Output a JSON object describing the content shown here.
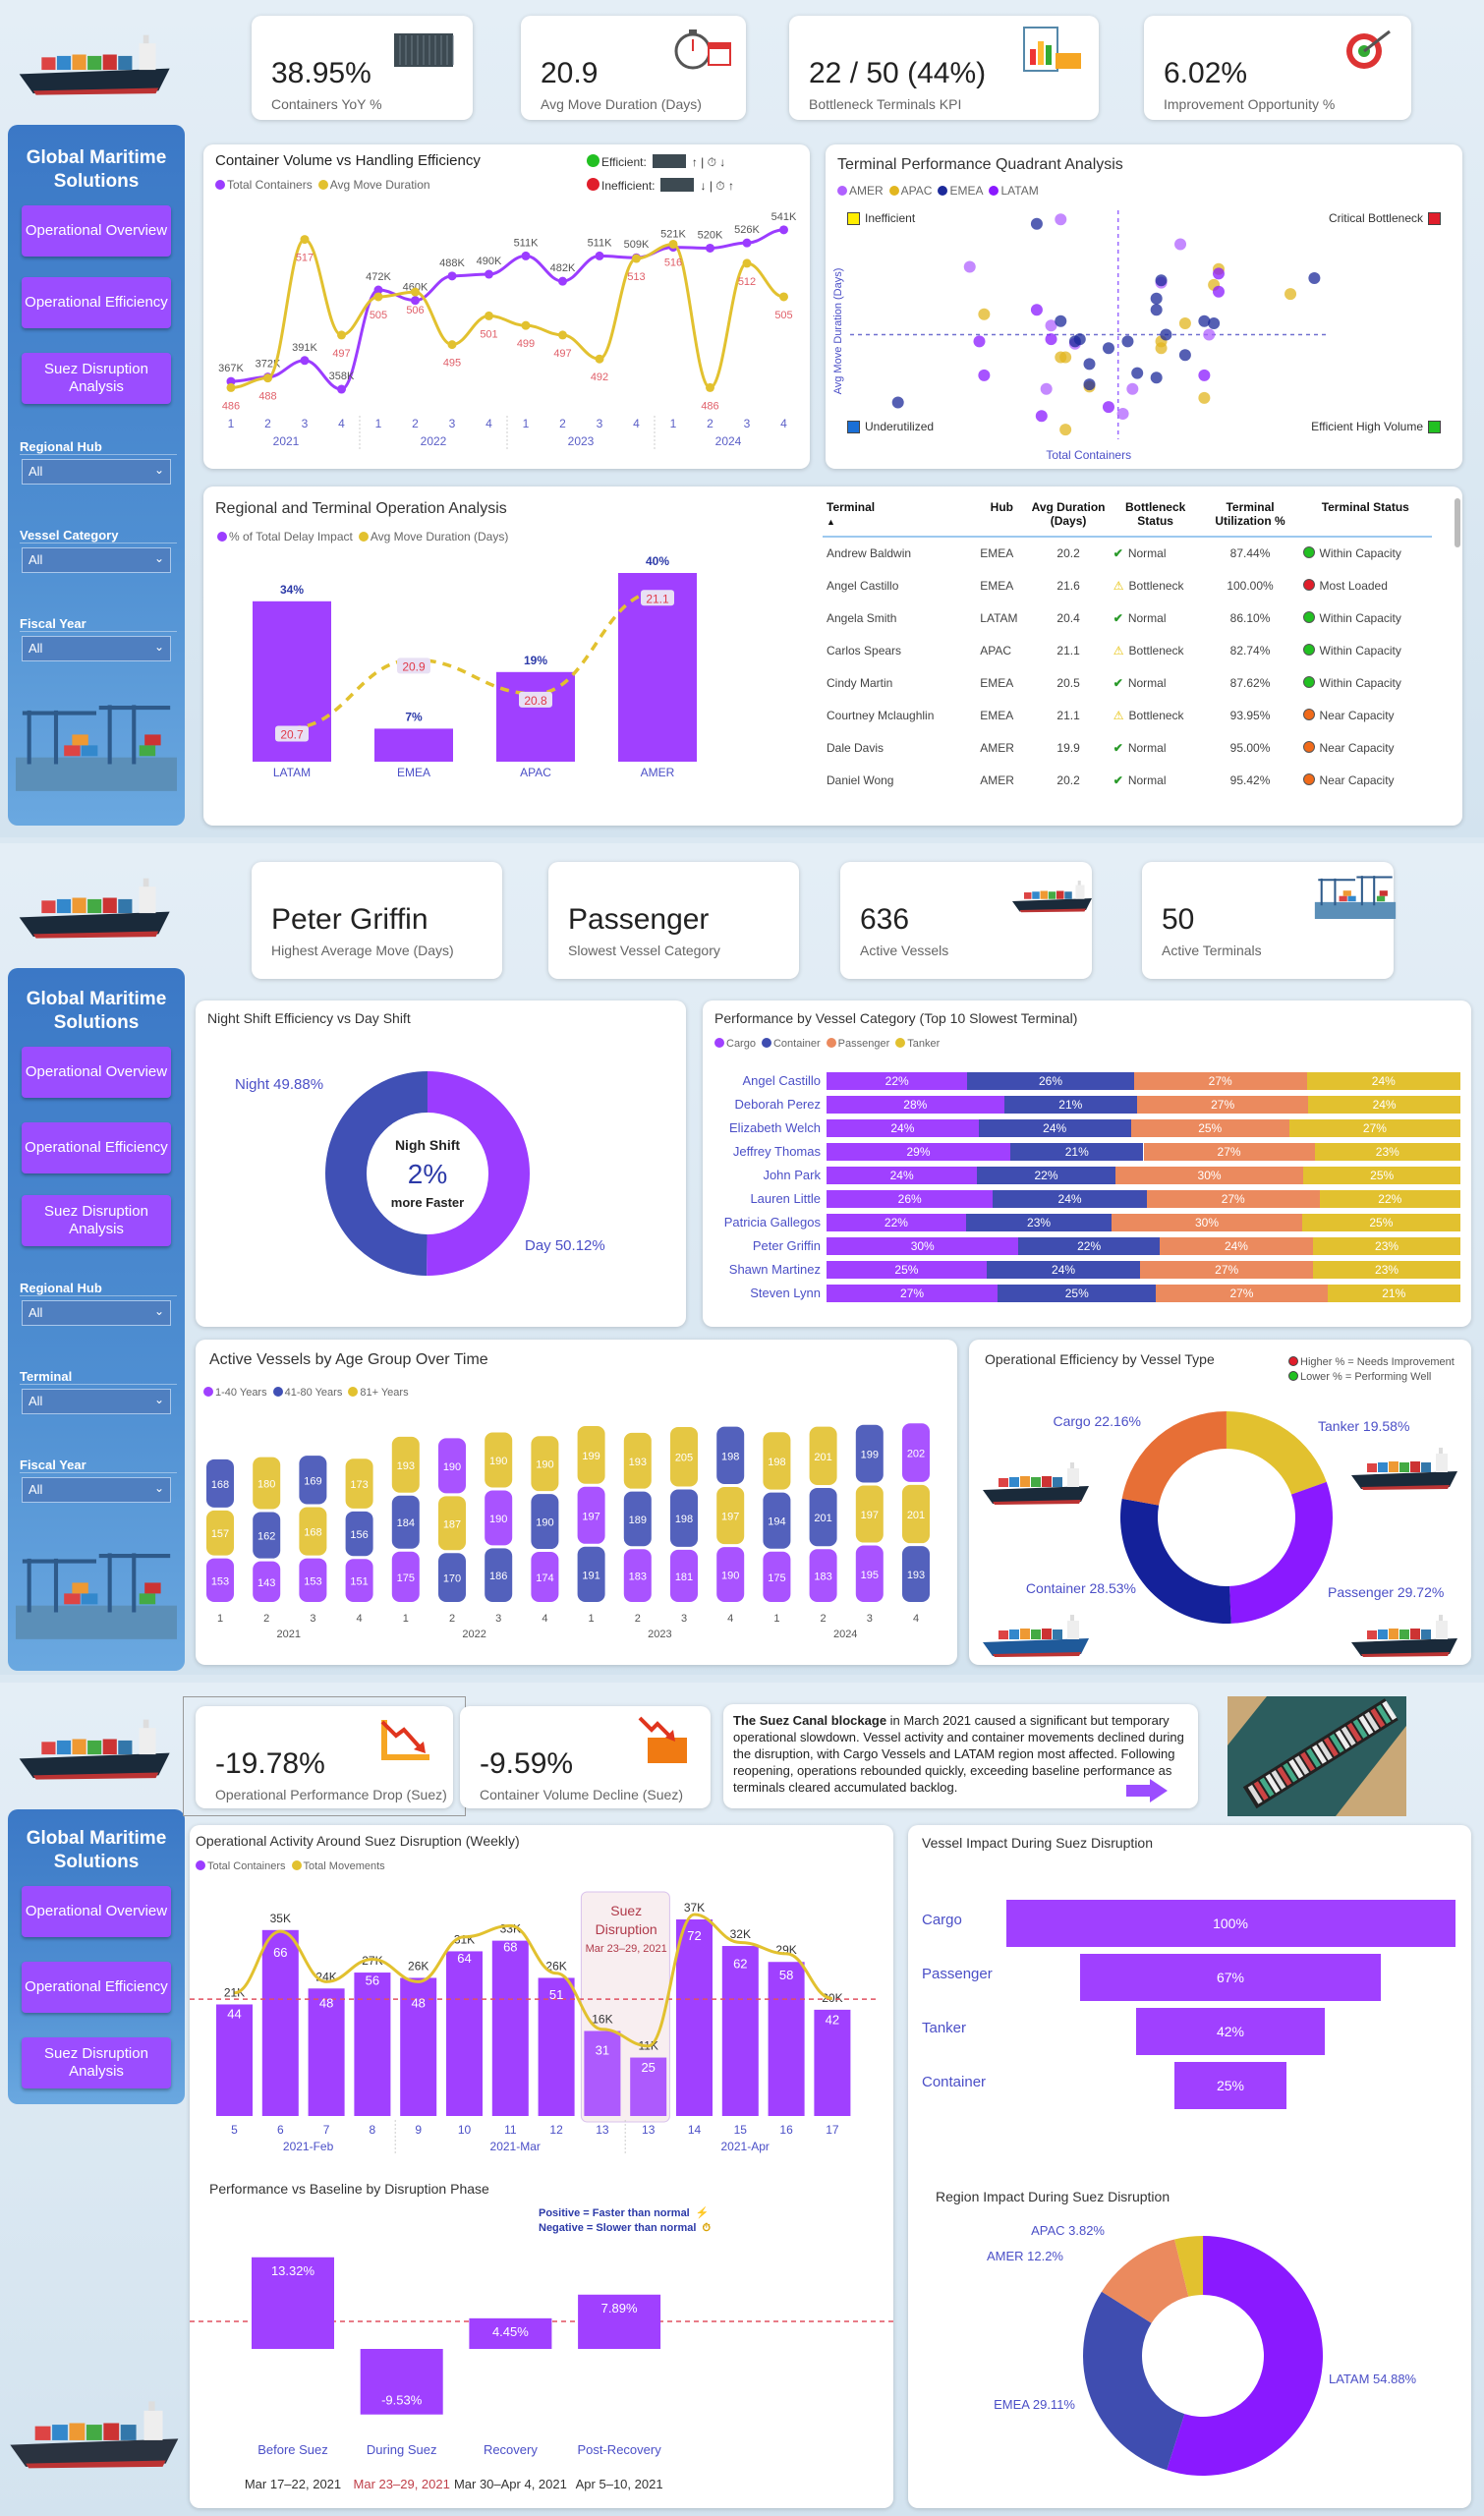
{
  "brand": {
    "title": "Global Maritime Solutions"
  },
  "nav": [
    "Operational Overview",
    "Operational Efficiency",
    "Suez Disruption Analysis"
  ],
  "colors": {
    "purple": "#9b3cff",
    "blue": "#3f4db0",
    "gold": "#e2c12f",
    "orange": "#e98a5d",
    "navy": "#14219a",
    "violet": "#8a19ff",
    "green": "#22c022",
    "red": "#e01e2b"
  },
  "page1": {
    "filters": [
      {
        "label": "Regional Hub",
        "value": "All"
      },
      {
        "label": "Vessel Category",
        "value": "All"
      },
      {
        "label": "Fiscal Year",
        "value": "All"
      }
    ],
    "kpis": [
      {
        "value": "38.95%",
        "label": "Containers YoY %",
        "icon": "container-icon"
      },
      {
        "value": "20.9",
        "label": "Avg Move Duration (Days)",
        "icon": "stopwatch-icon"
      },
      {
        "value": "22 / 50 (44%)",
        "label": "Bottleneck Terminals KPI",
        "icon": "clipboard-chart-icon"
      },
      {
        "value": "6.02%",
        "label": "Improvement Opportunity %",
        "icon": "target-icon"
      }
    ],
    "line_chart": {
      "title": "Container Volume vs Handling Efficiency",
      "legend": [
        "Total Containers",
        "Avg Move Duration"
      ],
      "status_legend": {
        "efficient": "Efficient:",
        "inefficient": "Inefficient:",
        "efficient_rule": "↑ | ⏱ ↓",
        "inefficient_rule": "↓ | ⏱ ↑"
      }
    },
    "quadrant": {
      "title": "Terminal Performance Quadrant Analysis",
      "legend": [
        "AMER",
        "APAC",
        "EMEA",
        "LATAM"
      ],
      "quadrants": {
        "tl": "Inefficient",
        "tr": "Critical Bottleneck",
        "bl": "Underutilized",
        "br": "Efficient High Volume"
      },
      "xlabel": "Total Containers",
      "ylabel": "Avg Move Duration (Days)"
    },
    "regional": {
      "title": "Regional and Terminal Operation Analysis",
      "legend": [
        "% of Total Delay Impact",
        "Avg Move Duration (Days)"
      ]
    },
    "table": {
      "headers": [
        "Terminal",
        "Hub",
        "Avg Duration (Days)",
        "Bottleneck Status",
        "Terminal Utilization %",
        "Terminal Status"
      ],
      "sort_indicator": "▲",
      "rows": [
        {
          "terminal": "Andrew Baldwin",
          "hub": "EMEA",
          "avg": "20.2",
          "bottleneck": "Normal",
          "util": "87.44%",
          "status": "Within Capacity",
          "status_color": "#22c022"
        },
        {
          "terminal": "Angel Castillo",
          "hub": "EMEA",
          "avg": "21.6",
          "bottleneck": "Bottleneck",
          "util": "100.00%",
          "status": "Most Loaded",
          "status_color": "#e01e2b"
        },
        {
          "terminal": "Angela Smith",
          "hub": "LATAM",
          "avg": "20.4",
          "bottleneck": "Normal",
          "util": "86.10%",
          "status": "Within Capacity",
          "status_color": "#22c022"
        },
        {
          "terminal": "Carlos Spears",
          "hub": "APAC",
          "avg": "21.1",
          "bottleneck": "Bottleneck",
          "util": "82.74%",
          "status": "Within Capacity",
          "status_color": "#22c022"
        },
        {
          "terminal": "Cindy Martin",
          "hub": "EMEA",
          "avg": "20.5",
          "bottleneck": "Normal",
          "util": "87.62%",
          "status": "Within Capacity",
          "status_color": "#22c022"
        },
        {
          "terminal": "Courtney Mclaughlin",
          "hub": "EMEA",
          "avg": "21.1",
          "bottleneck": "Bottleneck",
          "util": "93.95%",
          "status": "Near Capacity",
          "status_color": "#f06a1a"
        },
        {
          "terminal": "Dale Davis",
          "hub": "AMER",
          "avg": "19.9",
          "bottleneck": "Normal",
          "util": "95.00%",
          "status": "Near Capacity",
          "status_color": "#f06a1a"
        },
        {
          "terminal": "Daniel Wong",
          "hub": "AMER",
          "avg": "20.2",
          "bottleneck": "Normal",
          "util": "95.42%",
          "status": "Near Capacity",
          "status_color": "#f06a1a"
        }
      ]
    }
  },
  "page2": {
    "filters": [
      {
        "label": "Regional Hub",
        "value": "All"
      },
      {
        "label": "Terminal",
        "value": "All"
      },
      {
        "label": "Fiscal Year",
        "value": "All"
      }
    ],
    "kpis": [
      {
        "value": "Peter Griffin",
        "label": "Highest Average Move (Days)"
      },
      {
        "value": "Passenger",
        "label": "Slowest Vessel Category"
      },
      {
        "value": "636",
        "label": "Active Vessels",
        "icon": "cargo-ship-icon"
      },
      {
        "value": "50",
        "label": "Active Terminals",
        "icon": "port-crane-icon"
      }
    ],
    "shift": {
      "title": "Night Shift Efficiency vs Day Shift",
      "night_label": "Night 49.88%",
      "day_label": "Day 50.12%",
      "center_line1": "Nigh Shift",
      "center_value": "2%",
      "center_line2": "more Faster"
    },
    "vessel_category": {
      "title": "Performance by Vessel Category (Top 10 Slowest Terminal)"
    },
    "age": {
      "title": "Active Vessels by Age Group Over Time"
    },
    "efficiency": {
      "title": "Operational Efficiency by Vessel Type",
      "legend_high": "Higher % = Needs Improvement",
      "legend_low": "Lower %  = Performing Well"
    }
  },
  "page3": {
    "kpis": [
      {
        "value": "-19.78%",
        "label": "Operational Performance Drop (Suez)",
        "icon": "trend-down-icon"
      },
      {
        "value": "-9.59%",
        "label": "Container Volume Decline (Suez)",
        "icon": "container-decline-icon"
      }
    ],
    "story": {
      "bold": "The Suez Canal blockage",
      "text": " in March 2021 caused a significant but temporary operational slowdown. Vessel activity and container movements declined during the disruption, with Cargo Vessels and LATAM region most affected. Following reopening, operations rebounded quickly, exceeding baseline performance as terminals cleared accumulated backlog."
    },
    "weekly": {
      "title": "Operational Activity Around Suez Disruption (Weekly)",
      "legend": [
        "Total Containers",
        "Total Movements"
      ],
      "highlight_title": "Suez Disruption",
      "highlight_dates": "Mar 23–29, 2021"
    },
    "baseline": {
      "title": "Performance vs Baseline by Disruption Phase",
      "legend_pos": "Positive   = Faster than normal",
      "legend_neg": "Negative = Slower than normal"
    },
    "vessel_impact": {
      "title": "Vessel Impact During Suez Disruption"
    },
    "region_impact": {
      "title": "Region Impact During Suez Disruption"
    }
  },
  "chart_data": [
    {
      "id": "container_volume",
      "type": "line",
      "x": [
        "1",
        "2",
        "3",
        "4",
        "1",
        "2",
        "3",
        "4",
        "1",
        "2",
        "3",
        "4",
        "1",
        "2",
        "3",
        "4"
      ],
      "x_groups": [
        "2021",
        "2022",
        "2023",
        "2024"
      ],
      "series": [
        {
          "name": "Total Containers",
          "unit": "K",
          "values": [
            367,
            372,
            391,
            358,
            472,
            460,
            488,
            490,
            511,
            482,
            511,
            509,
            521,
            520,
            526,
            541
          ]
        },
        {
          "name": "Avg Move Duration",
          "values": [
            486,
            488,
            517,
            497,
            505,
            506,
            495,
            501,
            499,
            497,
            492,
            513,
            516,
            486,
            512,
            505
          ]
        }
      ]
    },
    {
      "id": "quadrant",
      "type": "scatter",
      "xlabel": "Total Containers",
      "ylabel": "Avg Move Duration (Days)",
      "x_median": 56,
      "y_median": 45,
      "series": [
        {
          "name": "AMER",
          "points": [
            [
              44,
              96
            ],
            [
              25,
              75
            ],
            [
              42,
              49
            ],
            [
              47,
              41
            ],
            [
              41,
              21
            ],
            [
              59,
              21
            ],
            [
              57,
              10
            ],
            [
              69,
              85
            ],
            [
              75,
              45
            ],
            [
              65,
              68
            ]
          ]
        },
        {
          "name": "APAC",
          "points": [
            [
              28,
              54
            ],
            [
              44,
              35
            ],
            [
              45,
              35
            ],
            [
              50,
              22
            ],
            [
              45,
              3
            ],
            [
              65,
              42
            ],
            [
              65,
              39
            ],
            [
              70,
              50
            ],
            [
              74,
              17
            ],
            [
              76,
              67
            ],
            [
              77,
              74
            ],
            [
              92,
              63
            ]
          ]
        },
        {
          "name": "EMEA",
          "points": [
            [
              39,
              94
            ],
            [
              10,
              15
            ],
            [
              44,
              51
            ],
            [
              47,
              42
            ],
            [
              48,
              43
            ],
            [
              50,
              32
            ],
            [
              54,
              39
            ],
            [
              50,
              23
            ],
            [
              58,
              42
            ],
            [
              60,
              28
            ],
            [
              64,
              26
            ],
            [
              65,
              69
            ],
            [
              64,
              61
            ],
            [
              64,
              56
            ],
            [
              66,
              45
            ],
            [
              70,
              36
            ],
            [
              74,
              51
            ],
            [
              76,
              50
            ],
            [
              97,
              70
            ]
          ]
        },
        {
          "name": "LATAM",
          "points": [
            [
              27,
              42
            ],
            [
              28,
              27
            ],
            [
              39,
              56
            ],
            [
              42,
              43
            ],
            [
              40,
              9
            ],
            [
              54,
              13
            ],
            [
              74,
              27
            ],
            [
              77,
              72
            ],
            [
              77,
              64
            ]
          ]
        }
      ]
    },
    {
      "id": "regional",
      "type": "bar",
      "categories": [
        "LATAM",
        "EMEA",
        "APAC",
        "AMER"
      ],
      "series": [
        {
          "name": "% of Total Delay Impact",
          "values": [
            34,
            7,
            19,
            40
          ],
          "labels": [
            "34%",
            "7%",
            "19%",
            "40%"
          ]
        },
        {
          "name": "Avg Move Duration (Days)",
          "values": [
            20.7,
            20.9,
            20.8,
            21.1
          ],
          "labels": [
            "20.7",
            "20.9",
            "20.8",
            "21.1"
          ]
        }
      ]
    },
    {
      "id": "shift",
      "type": "pie",
      "categories": [
        "Night",
        "Day"
      ],
      "values": [
        49.88,
        50.12
      ]
    },
    {
      "id": "vessel_category",
      "type": "bar",
      "stacked": true,
      "categories": [
        "Angel Castillo",
        "Deborah Perez",
        "Elizabeth Welch",
        "Jeffrey Thomas",
        "John Park",
        "Lauren Little",
        "Patricia Gallegos",
        "Peter Griffin",
        "Shawn Martinez",
        "Steven Lynn"
      ],
      "series": [
        {
          "name": "Cargo",
          "values": [
            22,
            28,
            24,
            29,
            24,
            26,
            22,
            30,
            25,
            27
          ]
        },
        {
          "name": "Container",
          "values": [
            26,
            21,
            24,
            21,
            22,
            24,
            23,
            22,
            24,
            25
          ]
        },
        {
          "name": "Passenger",
          "values": [
            27,
            27,
            25,
            27,
            30,
            27,
            30,
            24,
            27,
            27
          ]
        },
        {
          "name": "Tanker",
          "values": [
            24,
            24,
            27,
            23,
            25,
            22,
            25,
            23,
            23,
            21
          ]
        }
      ]
    },
    {
      "id": "age_group",
      "type": "bar",
      "stacked": true,
      "x": [
        "1",
        "2",
        "3",
        "4",
        "1",
        "2",
        "3",
        "4",
        "1",
        "2",
        "3",
        "4",
        "1",
        "2",
        "3",
        "4"
      ],
      "x_groups": [
        "2021",
        "2022",
        "2023",
        "2024"
      ],
      "series": [
        {
          "name": "1-40 Years",
          "values": [
            153,
            143,
            153,
            151,
            175,
            190,
            190,
            174,
            197,
            183,
            181,
            190,
            175,
            183,
            195,
            202
          ]
        },
        {
          "name": "41-80 Years",
          "values": [
            168,
            162,
            169,
            156,
            184,
            170,
            186,
            190,
            191,
            189,
            198,
            198,
            194,
            201,
            199,
            193
          ]
        },
        {
          "name": "81+ Years",
          "values": [
            157,
            180,
            168,
            173,
            193,
            187,
            190,
            190,
            199,
            193,
            205,
            197,
            198,
            201,
            197,
            201
          ]
        }
      ]
    },
    {
      "id": "vessel_type_efficiency",
      "type": "pie",
      "categories": [
        "Tanker",
        "Passenger",
        "Container",
        "Cargo"
      ],
      "values": [
        19.58,
        29.72,
        28.53,
        22.16
      ],
      "labels": [
        "Tanker 19.58%",
        "Passenger 29.72%",
        "Container 28.53%",
        "Cargo 22.16%"
      ]
    },
    {
      "id": "weekly",
      "type": "bar",
      "x": [
        "5",
        "6",
        "7",
        "8",
        "9",
        "10",
        "11",
        "12",
        "13",
        "13",
        "14",
        "15",
        "16",
        "17"
      ],
      "x_groups": [
        "2021-Feb",
        "2021-Mar",
        "2021-Apr"
      ],
      "reference_line": 22,
      "series": [
        {
          "name": "Total Containers",
          "unit": "K",
          "values": [
            21,
            35,
            24,
            27,
            26,
            31,
            33,
            26,
            16,
            11,
            37,
            32,
            29,
            20
          ],
          "labels": [
            "21K",
            "35K",
            "24K",
            "27K",
            "26K",
            "31K",
            "33K",
            "26K",
            "16K",
            "11K",
            "37K",
            "32K",
            "29K",
            "20K"
          ]
        },
        {
          "name": "Total Movements",
          "values": [
            44,
            66,
            48,
            56,
            48,
            64,
            68,
            51,
            31,
            25,
            72,
            62,
            58,
            42
          ]
        }
      ]
    },
    {
      "id": "baseline",
      "type": "bar",
      "categories": [
        "Before Suez",
        "During Suez",
        "Recovery",
        "Post-Recovery"
      ],
      "dates": [
        "Mar 17–22, 2021",
        "Mar 23–29, 2021",
        "Mar 30–Apr 4, 2021",
        "Apr 5–10, 2021"
      ],
      "values": [
        13.32,
        -9.53,
        4.45,
        7.89
      ],
      "labels": [
        "13.32%",
        "-9.53%",
        "4.45%",
        "7.89%"
      ]
    },
    {
      "id": "vessel_impact",
      "type": "bar",
      "categories": [
        "Cargo",
        "Passenger",
        "Tanker",
        "Container"
      ],
      "values": [
        100,
        67,
        42,
        25
      ],
      "labels": [
        "100%",
        "67%",
        "42%",
        "25%"
      ]
    },
    {
      "id": "region_impact",
      "type": "pie",
      "categories": [
        "LATAM",
        "EMEA",
        "AMER",
        "APAC"
      ],
      "values": [
        54.88,
        29.11,
        12.2,
        3.82
      ],
      "labels": [
        "LATAM 54.88%",
        "EMEA 29.11%",
        "AMER 12.2%",
        "APAC 3.82%"
      ]
    }
  ]
}
